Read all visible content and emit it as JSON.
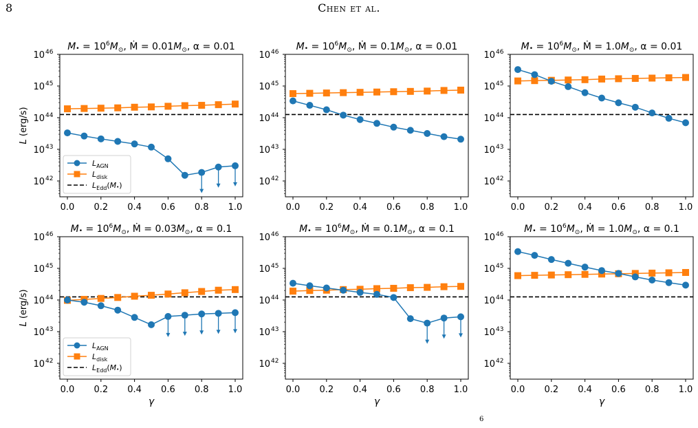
{
  "header": {
    "page_number": "8",
    "running_head": "Chen et al."
  },
  "caption_fragment": "6",
  "colors": {
    "agn": "#1f77b4",
    "disk": "#ff7f0e",
    "edd": "#000000"
  },
  "chart_data": [
    {
      "type": "line",
      "title": "M• = 10^6 M⊙, Ṁ = 0.01 M⊙, α = 0.01",
      "title_parts": {
        "prefix": "M",
        "mass": "10",
        "mass_exp": "6",
        "mdot": "0.01",
        "alpha": "0.01"
      },
      "xlabel": "",
      "ylabel": "L (erg/s)",
      "yscale": "log",
      "xlim": [
        0.0,
        1.0
      ],
      "ylim_log10": [
        41.5,
        46.0
      ],
      "x": [
        0.0,
        0.1,
        0.2,
        0.3,
        0.4,
        0.5,
        0.6,
        0.7,
        0.8,
        0.9,
        1.0
      ],
      "series": [
        {
          "name": "L_AGN",
          "marker": "circle",
          "log10_values": [
            43.52,
            43.42,
            43.33,
            43.25,
            43.17,
            43.07,
            42.7,
            42.18,
            42.27,
            42.44,
            42.48
          ],
          "upper_limit_indices": [
            8,
            9,
            10
          ]
        },
        {
          "name": "L_disk",
          "marker": "square",
          "log10_values": [
            44.28,
            44.29,
            44.3,
            44.31,
            44.33,
            44.34,
            44.36,
            44.38,
            44.39,
            44.41,
            44.43
          ]
        },
        {
          "name": "L_Edd(M•)",
          "style": "dashed",
          "log10_values": [
            44.1
          ]
        }
      ],
      "legend": {
        "position": "lower-left",
        "entries": [
          "L_AGN",
          "L_disk",
          "L_Edd(M•)"
        ]
      },
      "x_ticks": [
        "0.0",
        "0.2",
        "0.4",
        "0.6",
        "0.8",
        "1.0"
      ],
      "y_tick_exponents": [
        "42",
        "43",
        "44",
        "45",
        "46"
      ]
    },
    {
      "type": "line",
      "title": "M• = 10^6 M⊙, Ṁ = 0.1 M⊙, α = 0.01",
      "title_parts": {
        "prefix": "M",
        "mass": "10",
        "mass_exp": "6",
        "mdot": "0.1",
        "alpha": "0.01"
      },
      "xlabel": "",
      "ylabel": "",
      "yscale": "log",
      "xlim": [
        0.0,
        1.0
      ],
      "ylim_log10": [
        41.5,
        46.0
      ],
      "x": [
        0.0,
        0.1,
        0.2,
        0.3,
        0.4,
        0.5,
        0.6,
        0.7,
        0.8,
        0.9,
        1.0
      ],
      "series": [
        {
          "name": "L_AGN",
          "marker": "circle",
          "log10_values": [
            44.53,
            44.39,
            44.25,
            44.08,
            43.94,
            43.82,
            43.7,
            43.6,
            43.5,
            43.4,
            43.32
          ]
        },
        {
          "name": "L_disk",
          "marker": "square",
          "log10_values": [
            44.76,
            44.77,
            44.78,
            44.79,
            44.8,
            44.81,
            44.82,
            44.83,
            44.84,
            44.86,
            44.87
          ]
        },
        {
          "name": "L_Edd(M•)",
          "style": "dashed",
          "log10_values": [
            44.1
          ]
        }
      ],
      "x_ticks": [
        "0.0",
        "0.2",
        "0.4",
        "0.6",
        "0.8",
        "1.0"
      ],
      "y_tick_exponents": [
        "42",
        "43",
        "44",
        "45",
        "46"
      ]
    },
    {
      "type": "line",
      "title": "M• = 10^6 M⊙, Ṁ = 1.0 M⊙, α = 0.01",
      "title_parts": {
        "prefix": "M",
        "mass": "10",
        "mass_exp": "6",
        "mdot": "1.0",
        "alpha": "0.01"
      },
      "xlabel": "",
      "ylabel": "",
      "yscale": "log",
      "xlim": [
        0.0,
        1.0
      ],
      "ylim_log10": [
        41.5,
        46.0
      ],
      "x": [
        0.0,
        0.1,
        0.2,
        0.3,
        0.4,
        0.5,
        0.6,
        0.7,
        0.8,
        0.9,
        1.0
      ],
      "series": [
        {
          "name": "L_AGN",
          "marker": "circle",
          "log10_values": [
            45.52,
            45.36,
            45.15,
            44.98,
            44.79,
            44.62,
            44.47,
            44.33,
            44.15,
            43.98,
            43.84
          ]
        },
        {
          "name": "L_disk",
          "marker": "square",
          "log10_values": [
            45.16,
            45.17,
            45.18,
            45.19,
            45.2,
            45.22,
            45.23,
            45.24,
            45.25,
            45.26,
            45.27
          ]
        },
        {
          "name": "L_Edd(M•)",
          "style": "dashed",
          "log10_values": [
            44.1
          ]
        }
      ],
      "x_ticks": [
        "0.0",
        "0.2",
        "0.4",
        "0.6",
        "0.8",
        "1.0"
      ],
      "y_tick_exponents": [
        "42",
        "43",
        "44",
        "45",
        "46"
      ]
    },
    {
      "type": "line",
      "title": "M• = 10^6 M⊙, Ṁ = 0.03 M⊙, α = 0.1",
      "title_parts": {
        "prefix": "M",
        "mass": "10",
        "mass_exp": "6",
        "mdot": "0.03",
        "alpha": "0.1"
      },
      "xlabel": "γ",
      "ylabel": "L (erg/s)",
      "yscale": "log",
      "xlim": [
        0.0,
        1.0
      ],
      "ylim_log10": [
        41.5,
        46.0
      ],
      "x": [
        0.0,
        0.1,
        0.2,
        0.3,
        0.4,
        0.5,
        0.6,
        0.7,
        0.8,
        0.9,
        1.0
      ],
      "series": [
        {
          "name": "L_AGN",
          "marker": "circle",
          "log10_values": [
            44.0,
            43.93,
            43.82,
            43.68,
            43.45,
            43.22,
            43.48,
            43.52,
            43.56,
            43.58,
            43.6
          ],
          "upper_limit_indices": [
            6,
            7,
            8,
            9,
            10
          ]
        },
        {
          "name": "L_disk",
          "marker": "square",
          "log10_values": [
            43.99,
            44.02,
            44.05,
            44.08,
            44.12,
            44.15,
            44.19,
            44.23,
            44.27,
            44.31,
            44.33
          ]
        },
        {
          "name": "L_Edd(M•)",
          "style": "dashed",
          "log10_values": [
            44.1
          ]
        }
      ],
      "legend": {
        "position": "lower-left",
        "entries": [
          "L_AGN",
          "L_disk",
          "L_Edd(M•)"
        ]
      },
      "x_ticks": [
        "0.0",
        "0.2",
        "0.4",
        "0.6",
        "0.8",
        "1.0"
      ],
      "y_tick_exponents": [
        "42",
        "43",
        "44",
        "45",
        "46"
      ]
    },
    {
      "type": "line",
      "title": "M• = 10^6 M⊙, Ṁ = 0.1 M⊙, α = 0.1",
      "title_parts": {
        "prefix": "M",
        "mass": "10",
        "mass_exp": "6",
        "mdot": "0.1",
        "alpha": "0.1"
      },
      "xlabel": "γ",
      "ylabel": "",
      "yscale": "log",
      "xlim": [
        0.0,
        1.0
      ],
      "ylim_log10": [
        41.5,
        46.0
      ],
      "x": [
        0.0,
        0.1,
        0.2,
        0.3,
        0.4,
        0.5,
        0.6,
        0.7,
        0.8,
        0.9,
        1.0
      ],
      "series": [
        {
          "name": "L_AGN",
          "marker": "circle",
          "log10_values": [
            44.53,
            44.45,
            44.38,
            44.31,
            44.24,
            44.18,
            44.08,
            43.41,
            43.27,
            43.43,
            43.47
          ],
          "upper_limit_indices": [
            8,
            9,
            10
          ]
        },
        {
          "name": "L_disk",
          "marker": "square",
          "log10_values": [
            44.28,
            44.3,
            44.31,
            44.33,
            44.34,
            44.36,
            44.37,
            44.39,
            44.4,
            44.42,
            44.43
          ]
        },
        {
          "name": "L_Edd(M•)",
          "style": "dashed",
          "log10_values": [
            44.1
          ]
        }
      ],
      "x_ticks": [
        "0.0",
        "0.2",
        "0.4",
        "0.6",
        "0.8",
        "1.0"
      ],
      "y_tick_exponents": [
        "42",
        "43",
        "44",
        "45",
        "46"
      ]
    },
    {
      "type": "line",
      "title": "M• = 10^6 M⊙, Ṁ = 1.0 M⊙, α = 0.1",
      "title_parts": {
        "prefix": "M",
        "mass": "10",
        "mass_exp": "6",
        "mdot": "1.0",
        "alpha": "0.1"
      },
      "xlabel": "γ",
      "ylabel": "",
      "yscale": "log",
      "xlim": [
        0.0,
        1.0
      ],
      "ylim_log10": [
        41.5,
        46.0
      ],
      "x": [
        0.0,
        0.1,
        0.2,
        0.3,
        0.4,
        0.5,
        0.6,
        0.7,
        0.8,
        0.9,
        1.0
      ],
      "series": [
        {
          "name": "L_AGN",
          "marker": "circle",
          "log10_values": [
            45.53,
            45.41,
            45.28,
            45.16,
            45.04,
            44.93,
            44.84,
            44.73,
            44.63,
            44.55,
            44.47
          ]
        },
        {
          "name": "L_disk",
          "marker": "square",
          "log10_values": [
            44.77,
            44.78,
            44.79,
            44.8,
            44.81,
            44.82,
            44.83,
            44.84,
            44.85,
            44.86,
            44.87
          ]
        },
        {
          "name": "L_Edd(M•)",
          "style": "dashed",
          "log10_values": [
            44.1
          ]
        }
      ],
      "x_ticks": [
        "0.0",
        "0.2",
        "0.4",
        "0.6",
        "0.8",
        "1.0"
      ],
      "y_tick_exponents": [
        "42",
        "43",
        "44",
        "45",
        "46"
      ]
    }
  ]
}
